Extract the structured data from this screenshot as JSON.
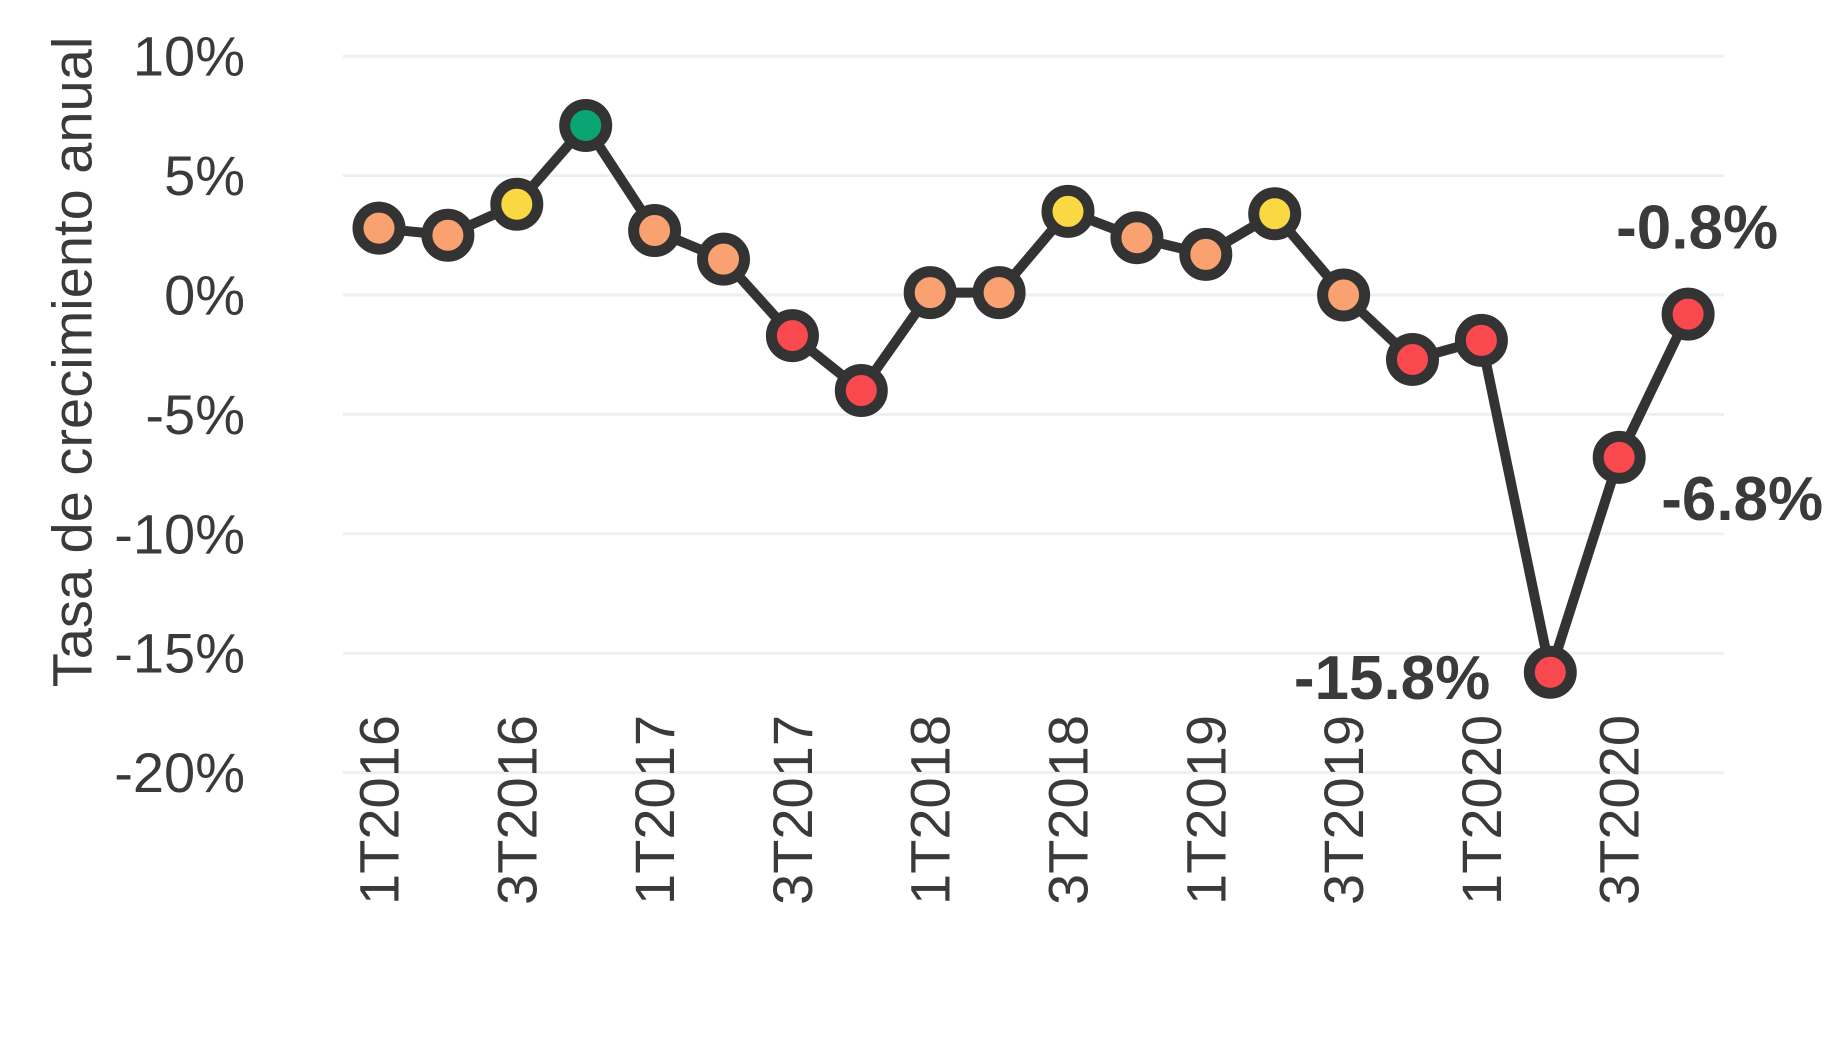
{
  "chart_data": {
    "type": "line",
    "title": "",
    "xlabel": "",
    "ylabel": "Tasa de crecimiento anual",
    "ylim": [
      -20,
      10
    ],
    "grid": true,
    "legend": "none",
    "yticks": [
      {
        "value": 10,
        "label": "10%"
      },
      {
        "value": 5,
        "label": "5%"
      },
      {
        "value": 0,
        "label": "0%"
      },
      {
        "value": -5,
        "label": "-5%"
      },
      {
        "value": -10,
        "label": "-10%"
      },
      {
        "value": -15,
        "label": "-15%"
      },
      {
        "value": -20,
        "label": "-20%"
      }
    ],
    "categories": [
      "1T2016",
      "2T2016",
      "3T2016",
      "4T2016",
      "1T2017",
      "2T2017",
      "3T2017",
      "4T2017",
      "1T2018",
      "2T2018",
      "3T2018",
      "4T2018",
      "1T2019",
      "2T2019",
      "3T2019",
      "4T2019",
      "1T2020",
      "2T2020",
      "3T2020",
      "4T2020"
    ],
    "x_axis_labels_shown": [
      "1T2016",
      "3T2016",
      "1T2017",
      "3T2017",
      "1T2018",
      "3T2018",
      "1T2019",
      "3T2019",
      "1T2020",
      "3T2020"
    ],
    "x_label_every": 2,
    "series": [
      {
        "name": "Tasa de crecimiento anual",
        "values": [
          2.8,
          2.5,
          3.8,
          7.1,
          2.7,
          1.5,
          -1.7,
          -4.0,
          0.1,
          0.1,
          3.5,
          2.4,
          1.7,
          3.4,
          0.0,
          -2.7,
          -1.9,
          -15.8,
          -6.8,
          -0.8
        ],
        "point_color_keys": [
          "orange",
          "orange",
          "yellow",
          "green",
          "orange",
          "orange",
          "red",
          "red",
          "orange",
          "orange",
          "yellow",
          "orange",
          "orange",
          "yellow",
          "orange",
          "red",
          "red",
          "red",
          "red",
          "red"
        ]
      }
    ],
    "annotations": [
      {
        "text": "-15.8%",
        "point_index": 17,
        "placement": "left"
      },
      {
        "text": "-6.8%",
        "point_index": 18,
        "placement": "right-below"
      },
      {
        "text": "-0.8%",
        "point_index": 19,
        "placement": "above-right"
      }
    ],
    "colors": {
      "orange": "#F9A170",
      "yellow": "#FAD843",
      "green": "#09A674",
      "red": "#F9494F",
      "line": "#333333",
      "grid": "#EFEFEF",
      "text": "#3A3A3A"
    }
  }
}
